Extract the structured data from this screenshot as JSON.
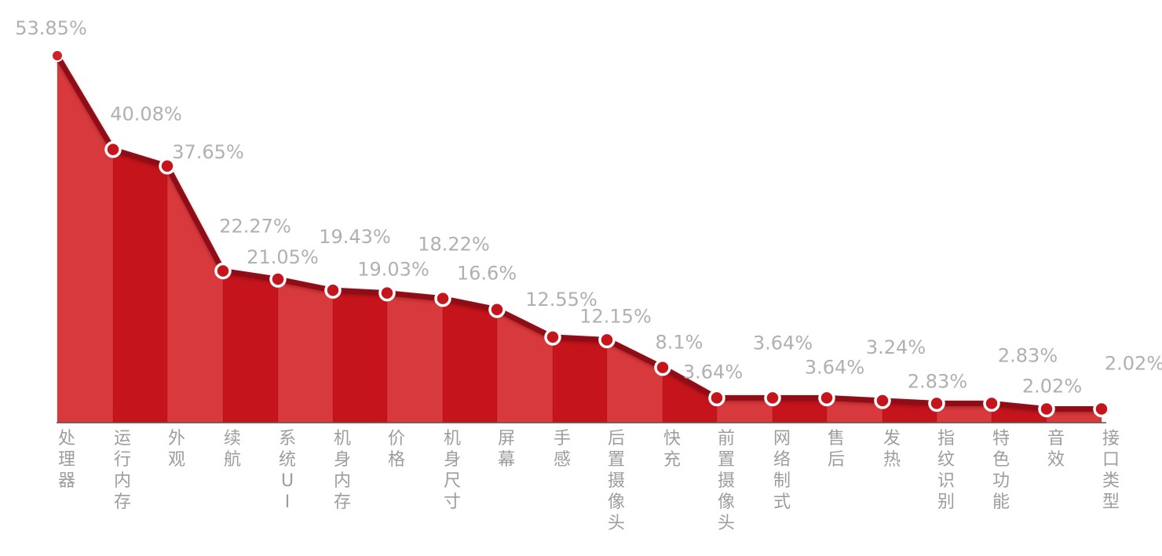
{
  "chart_data": {
    "type": "area",
    "title": "",
    "xlabel": "",
    "ylabel": "",
    "ylim": [
      0,
      53.85
    ],
    "grid": false,
    "legend": "none",
    "colors": {
      "light_fill": "#d8393c",
      "dark_fill": "#c5141b",
      "line": "#8f0f13",
      "marker": "#ffffff",
      "first_marker": "#d0202a",
      "text": "#b0b0b0",
      "axis": "#555555"
    },
    "categories": [
      "处理器",
      "运行内存",
      "外观",
      "续航",
      "系统UI",
      "机身内存",
      "价格",
      "机身尺寸",
      "屏幕",
      "手感",
      "后置摄像头",
      "快充",
      "前置摄像头",
      "网络制式",
      "售后",
      "发热",
      "指纹识别",
      "特色功能",
      "音效",
      "接口类型"
    ],
    "values": [
      53.85,
      40.08,
      37.65,
      22.27,
      21.05,
      19.43,
      19.03,
      18.22,
      16.6,
      12.55,
      12.15,
      8.1,
      3.64,
      3.64,
      3.64,
      3.24,
      2.83,
      2.83,
      2.02,
      2.02
    ],
    "data_labels": [
      "53.85%",
      "40.08%",
      "37.65%",
      "22.27%",
      "21.05%",
      "19.43%",
      "19.03%",
      "18.22%",
      "16.6%",
      "12.55%",
      "12.15%",
      "8.1%",
      "3.64%",
      "3.64%",
      "3.64%",
      "3.24%",
      "2.83%",
      "2.83%",
      "2.02%",
      "2.02%"
    ]
  }
}
